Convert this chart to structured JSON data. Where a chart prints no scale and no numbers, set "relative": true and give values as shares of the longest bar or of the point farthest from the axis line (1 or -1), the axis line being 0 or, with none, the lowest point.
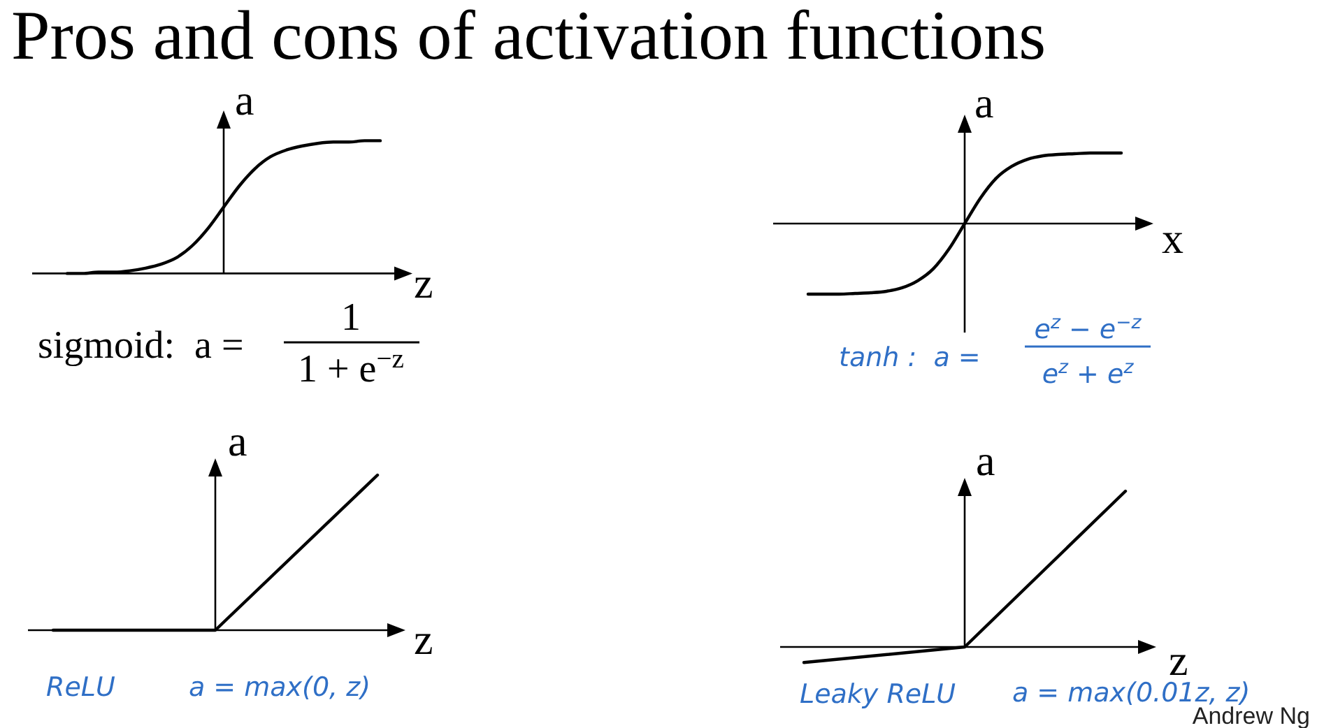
{
  "chart_data": [
    {
      "type": "line",
      "title": "Pros and cons of activation functions",
      "relative": true,
      "xlabel": "z",
      "ylabel": "a",
      "color": "#000000",
      "categories": [
        null,
        null,
        null,
        null,
        null,
        null,
        null,
        null,
        null,
        null,
        null,
        null,
        null,
        null,
        null,
        null,
        null,
        null,
        null,
        null,
        null
      ],
      "values": [
        0.0,
        0.0,
        0.01,
        0.01,
        0.02,
        0.04,
        0.07,
        0.12,
        0.21,
        0.34,
        0.5,
        0.66,
        0.79,
        0.88,
        0.93,
        0.96,
        0.98,
        0.99,
        0.99,
        1.0,
        1.0
      ],
      "annotations": [
        "sigmoid:  a =",
        "1",
        "1 + e$^{−z}$"
      ]
    },
    {
      "type": "line",
      "relative": true,
      "xlabel": "x",
      "ylabel": "a",
      "color": "#000000",
      "categories": [
        null,
        null,
        null,
        null,
        null,
        null,
        null,
        null,
        null,
        null,
        null,
        null,
        null,
        null,
        null,
        null,
        null,
        null,
        null,
        null,
        null
      ],
      "values": [
        -1.0,
        -1.0,
        -1.0,
        -0.99,
        -0.98,
        -0.96,
        -0.91,
        -0.81,
        -0.64,
        -0.36,
        0,
        0.36,
        0.64,
        0.81,
        0.91,
        0.96,
        0.98,
        0.99,
        1.0,
        1.0,
        1.0
      ],
      "annotations": [
        "tanh :  a =",
        "e$^{z}$ − e$^{−z}$",
        "e$^{z}$ + e$^{z}$"
      ]
    },
    {
      "type": "line",
      "relative": true,
      "xlabel": "z",
      "ylabel": "a",
      "color": "#000000",
      "categories": [
        null,
        null,
        null
      ],
      "values": [
        0,
        0,
        1
      ],
      "annotations": [
        "ReLU",
        "a = max(0, z)"
      ]
    },
    {
      "type": "line",
      "relative": true,
      "xlabel": "z",
      "ylabel": "a",
      "color": "#000000",
      "categories": [
        null,
        null,
        null
      ],
      "values": [
        -0.1,
        0,
        1
      ],
      "annotations": [
        "Leaky ReLU",
        "a = max(0.01z, z)",
        "Andrew Ng"
      ]
    }
  ]
}
